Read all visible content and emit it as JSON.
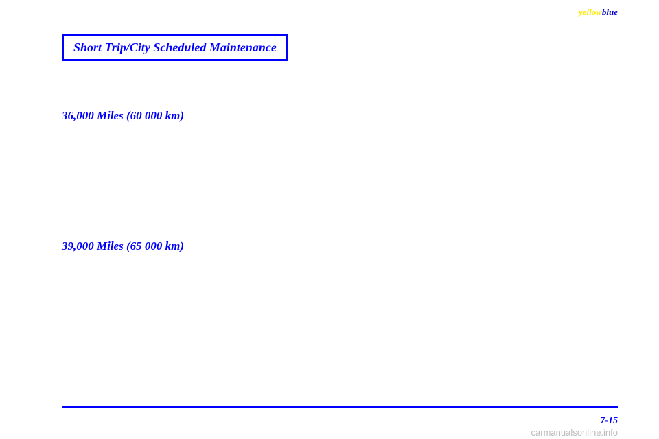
{
  "header_label": {
    "part1": "yellow",
    "part2": "blue"
  },
  "title": "Short Trip/City Scheduled Maintenance",
  "sections": [
    {
      "heading": "36,000 Miles (60 000 km)"
    },
    {
      "heading": "39,000 Miles (65 000 km)"
    }
  ],
  "page_number": "7-15",
  "watermark": "carmanualsonline.info",
  "colors": {
    "primary_blue": "#0000ff",
    "yellow": "#ffeb00",
    "watermark_gray": "#bbbbbb",
    "background": "#ffffff"
  }
}
